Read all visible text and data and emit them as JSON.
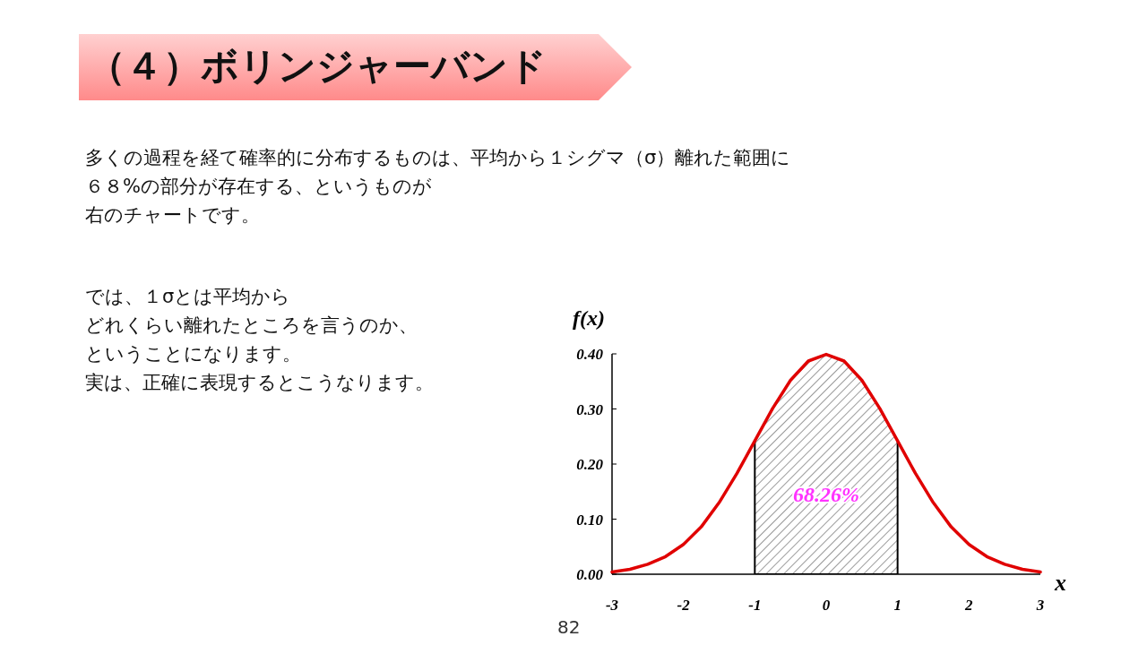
{
  "chart_data": {
    "type": "line",
    "title": "（４）ボリンジャーバンド",
    "ylabel": "f(x)",
    "xlabel": "x",
    "x": [
      -3,
      -2.75,
      -2.5,
      -2.25,
      -2,
      -1.75,
      -1.5,
      -1.25,
      -1,
      -0.75,
      -0.5,
      -0.25,
      0,
      0.25,
      0.5,
      0.75,
      1,
      1.25,
      1.5,
      1.75,
      2,
      2.25,
      2.5,
      2.75,
      3
    ],
    "series": [
      {
        "color": "#e00000",
        "values": [
          0.004,
          0.009,
          0.018,
          0.032,
          0.054,
          0.086,
          0.13,
          0.183,
          0.242,
          0.301,
          0.352,
          0.387,
          0.399,
          0.387,
          0.352,
          0.301,
          0.242,
          0.183,
          0.13,
          0.086,
          0.054,
          0.032,
          0.018,
          0.009,
          0.004
        ]
      }
    ],
    "xlim": [
      -3,
      3
    ],
    "ylim": [
      0,
      0.4
    ],
    "xticks": [
      -3,
      -2,
      -1,
      0,
      1,
      2,
      3
    ],
    "yticks": [
      {
        "value": 0,
        "label": "0.00"
      },
      {
        "value": 0.1,
        "label": "0.10"
      },
      {
        "value": 0.2,
        "label": "0.20"
      },
      {
        "value": 0.3,
        "label": "0.30"
      },
      {
        "value": 0.4,
        "label": "0.40"
      }
    ],
    "bands": [
      {
        "axis": "x",
        "from": -1,
        "to": 1,
        "label": "68.26%"
      }
    ],
    "grid": false,
    "annotations": [
      "多くの過程を経て確率的に分布するものは、平均から１シグマ（σ）離れた範囲に",
      "６８%の部分が存在する、というものが",
      "右のチャートです。",
      "では、１σとは平均から",
      "どれくらい離れたところを言うのか、",
      "ということになります。",
      "実は、正確に表現するとこうなります。",
      "82"
    ]
  }
}
